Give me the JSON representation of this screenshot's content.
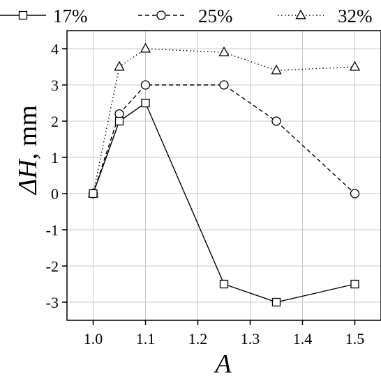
{
  "chart_data": {
    "type": "line",
    "xlabel": "A",
    "ylabel_italic": "ΔH",
    "ylabel_unit": ", mm",
    "xlim": [
      0.95,
      1.55
    ],
    "ylim": [
      -3.5,
      4.5
    ],
    "x_ticks": [
      "1.0",
      "1.1",
      "1.2",
      "1.3",
      "1.4",
      "1.5"
    ],
    "y_ticks": [
      "4",
      "3",
      "2",
      "1",
      "0",
      "-1",
      "-2",
      "-3"
    ],
    "grid": true,
    "legend_position": "top",
    "series": [
      {
        "name": "17%",
        "marker": "square",
        "line_style": "solid",
        "x": [
          1.0,
          1.05,
          1.1,
          1.25,
          1.35,
          1.5
        ],
        "y": [
          0,
          2.0,
          2.5,
          -2.5,
          -3.0,
          -2.5
        ]
      },
      {
        "name": "25%",
        "marker": "circle",
        "line_style": "dashed",
        "x": [
          1.0,
          1.05,
          1.1,
          1.25,
          1.35,
          1.5
        ],
        "y": [
          0,
          2.2,
          3.0,
          3.0,
          2.0,
          0
        ]
      },
      {
        "name": "32%",
        "marker": "triangle",
        "line_style": "dotted",
        "x": [
          1.0,
          1.05,
          1.1,
          1.25,
          1.35,
          1.5
        ],
        "y": [
          0,
          3.5,
          4.0,
          3.9,
          3.4,
          3.5
        ]
      }
    ]
  }
}
